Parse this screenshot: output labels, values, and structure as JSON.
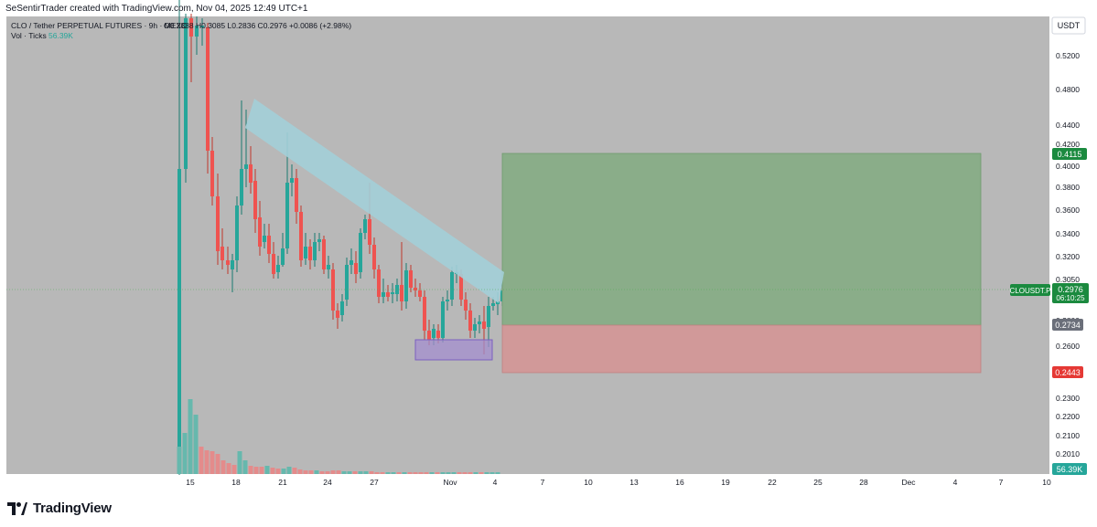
{
  "header": {
    "credit": "SeSentirTrader created with TradingView.com, Nov 04, 2025 12:49 UTC+1"
  },
  "legend": {
    "symbol": "CLO / Tether PERPETUAL FUTURES · 9h · MEXC",
    "ohlc": "O0.2888 H0.3085 L0.2836 C0.2976 +0.0086 (+2.98%)",
    "vol_label": "Vol · Ticks",
    "vol_value": "56.39K"
  },
  "currency_button": "USDT",
  "brand": "TradingView",
  "colors": {
    "up": "#26a69a",
    "down": "#ef5350",
    "profit_zone": "#8aad89",
    "loss_zone": "#d19999",
    "channel": "#a3cfd8",
    "demand_box": "#a48fcf",
    "background": "#b8b8b8"
  },
  "chart_data": {
    "type": "candlestick",
    "x_ticks": [
      "15",
      "18",
      "21",
      "24",
      "27",
      "Nov",
      "4",
      "7",
      "10",
      "13",
      "16",
      "19",
      "22",
      "25",
      "28",
      "Dec",
      "4",
      "7",
      "10"
    ],
    "y_ticks": [
      "0.5200",
      "0.4800",
      "0.4400",
      "0.4200",
      "0.4000",
      "0.3800",
      "0.3600",
      "0.3400",
      "0.3200",
      "0.3050",
      "0.2800",
      "0.2600",
      "0.2300",
      "0.2200",
      "0.2100",
      "0.2010"
    ],
    "price_labels": {
      "symbol": "CLOUSDT.P",
      "last": "0.2976",
      "countdown": "06:10:25",
      "target": "0.4115",
      "entry": "0.2734",
      "stop": "0.2443",
      "volume": "56.39K"
    },
    "position": {
      "side": "long",
      "target": 0.4115,
      "entry": 0.2734,
      "stop": 0.2443
    }
  }
}
